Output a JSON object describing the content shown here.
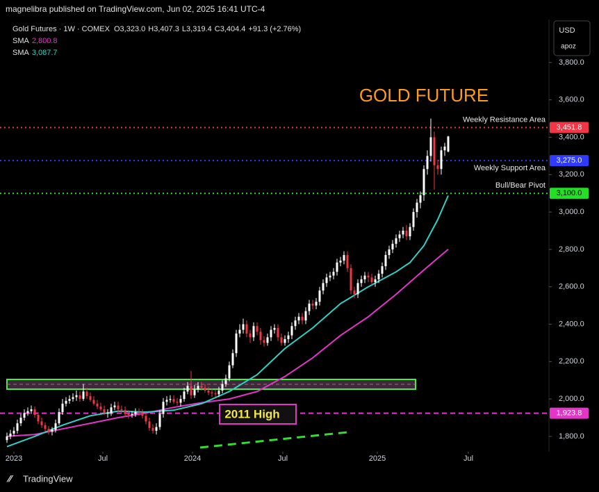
{
  "header": {
    "publisher": "magnelibra published on TradingView.com, Jun 02, 2025 16:41 UTC-4",
    "currency": "USD",
    "scale_mode": "apoz",
    "brand": "TradingView"
  },
  "chart_data": {
    "type": "candlestick",
    "symbol": "Gold Futures · 1W · COMEX",
    "ohlc": [
      {
        "key": "O",
        "value": "3,323.0"
      },
      {
        "key": "H",
        "value": "3,407.3"
      },
      {
        "key": "L",
        "value": "3,319.4"
      },
      {
        "key": "C",
        "value": "3,404.4"
      }
    ],
    "change": "+91.3 (+2.76%)",
    "up_color": "#ffffff",
    "down_color": "#f23645",
    "open": [
      1780,
      1800,
      1815,
      1830,
      1870,
      1900,
      1925,
      1935,
      1945,
      1915,
      1880,
      1860,
      1840,
      1825,
      1835,
      1870,
      1930,
      1975,
      1990,
      2000,
      2010,
      2020,
      2000,
      2040,
      2015,
      1995,
      1975,
      1960,
      1945,
      1925,
      1925,
      1955,
      1965,
      1945,
      1940,
      1920,
      1915,
      1920,
      1930,
      1925,
      1910,
      1880,
      1845,
      1830,
      1850,
      1920,
      1985,
      1995,
      2000,
      1985,
      1980,
      2000,
      2040,
      2070,
      2020,
      2050,
      2070,
      2060,
      2045,
      2035,
      2030,
      2025,
      2045,
      2080,
      2110,
      2180,
      2245,
      2350,
      2370,
      2400,
      2350,
      2330,
      2390,
      2360,
      2315,
      2300,
      2330,
      2370,
      2380,
      2330,
      2300,
      2320,
      2340,
      2390,
      2420,
      2440,
      2420,
      2470,
      2510,
      2500,
      2520,
      2580,
      2620,
      2650,
      2660,
      2680,
      2730,
      2740,
      2770,
      2700,
      2580,
      2560,
      2620,
      2640,
      2660,
      2650,
      2625,
      2640,
      2670,
      2710,
      2770,
      2800,
      2830,
      2860,
      2880,
      2900,
      2870,
      2920,
      3000,
      3050,
      3090,
      3230,
      3300,
      3400,
      3250,
      3230,
      3330,
      3323.0
    ],
    "high": [
      1820,
      1835,
      1850,
      1890,
      1920,
      1945,
      1955,
      1965,
      1960,
      1930,
      1900,
      1875,
      1855,
      1850,
      1890,
      1950,
      2000,
      2010,
      2020,
      2030,
      2045,
      2040,
      2080,
      2060,
      2035,
      2015,
      1995,
      1980,
      1965,
      1945,
      1975,
      1985,
      1985,
      1965,
      1960,
      1940,
      1935,
      1950,
      1950,
      1945,
      1930,
      1900,
      1865,
      1870,
      1940,
      2005,
      2015,
      2020,
      2020,
      2005,
      2020,
      2060,
      2090,
      2150,
      2075,
      2090,
      2090,
      2080,
      2065,
      2055,
      2050,
      2065,
      2100,
      2130,
      2200,
      2265,
      2370,
      2400,
      2430,
      2420,
      2370,
      2410,
      2410,
      2380,
      2335,
      2350,
      2390,
      2400,
      2400,
      2350,
      2340,
      2360,
      2410,
      2440,
      2460,
      2460,
      2490,
      2530,
      2530,
      2540,
      2600,
      2640,
      2670,
      2680,
      2700,
      2750,
      2760,
      2790,
      2790,
      2720,
      2600,
      2640,
      2660,
      2680,
      2680,
      2670,
      2660,
      2690,
      2730,
      2790,
      2820,
      2850,
      2880,
      2900,
      2920,
      2930,
      2940,
      3020,
      3070,
      3110,
      3250,
      3330,
      3500,
      3430,
      3280,
      3350,
      3370,
      3407.3
    ],
    "low": [
      1765,
      1785,
      1800,
      1815,
      1855,
      1885,
      1910,
      1920,
      1900,
      1865,
      1845,
      1825,
      1810,
      1805,
      1820,
      1860,
      1915,
      1960,
      1975,
      1985,
      1990,
      1985,
      1990,
      2000,
      1985,
      1965,
      1945,
      1935,
      1915,
      1900,
      1910,
      1940,
      1930,
      1925,
      1905,
      1895,
      1900,
      1905,
      1910,
      1895,
      1865,
      1830,
      1815,
      1810,
      1835,
      1900,
      1965,
      1980,
      1975,
      1965,
      1960,
      1985,
      2025,
      2000,
      2005,
      2035,
      2045,
      2035,
      2020,
      2010,
      2010,
      2010,
      2030,
      2065,
      2095,
      2165,
      2225,
      2330,
      2350,
      2330,
      2300,
      2310,
      2340,
      2290,
      2280,
      2285,
      2310,
      2350,
      2310,
      2285,
      2285,
      2300,
      2320,
      2370,
      2400,
      2400,
      2400,
      2450,
      2480,
      2480,
      2500,
      2560,
      2600,
      2630,
      2640,
      2660,
      2710,
      2720,
      2680,
      2560,
      2540,
      2540,
      2600,
      2620,
      2625,
      2610,
      2600,
      2620,
      2650,
      2690,
      2750,
      2780,
      2810,
      2840,
      2860,
      2850,
      2850,
      2900,
      2970,
      3020,
      3060,
      3200,
      3270,
      3120,
      3200,
      3200,
      3300,
      3319.4
    ],
    "close": [
      1800,
      1815,
      1830,
      1870,
      1900,
      1925,
      1935,
      1945,
      1915,
      1880,
      1860,
      1840,
      1825,
      1835,
      1870,
      1930,
      1975,
      1990,
      2000,
      2010,
      2020,
      2000,
      2040,
      2015,
      1995,
      1975,
      1960,
      1945,
      1925,
      1925,
      1955,
      1965,
      1945,
      1940,
      1920,
      1915,
      1920,
      1930,
      1925,
      1910,
      1880,
      1845,
      1830,
      1850,
      1920,
      1985,
      1995,
      2000,
      1985,
      1980,
      2000,
      2040,
      2070,
      2020,
      2050,
      2070,
      2060,
      2045,
      2035,
      2030,
      2025,
      2045,
      2080,
      2110,
      2180,
      2245,
      2350,
      2370,
      2400,
      2350,
      2330,
      2390,
      2360,
      2315,
      2300,
      2330,
      2370,
      2380,
      2330,
      2300,
      2320,
      2340,
      2390,
      2420,
      2440,
      2420,
      2470,
      2510,
      2500,
      2520,
      2580,
      2620,
      2650,
      2660,
      2680,
      2730,
      2740,
      2770,
      2700,
      2580,
      2560,
      2620,
      2640,
      2660,
      2650,
      2625,
      2640,
      2670,
      2710,
      2770,
      2800,
      2830,
      2860,
      2880,
      2900,
      2870,
      2920,
      3000,
      3050,
      3090,
      3230,
      3300,
      3400,
      3250,
      3230,
      3330,
      3350,
      3404.4
    ],
    "sma": [
      {
        "name": "SMA",
        "color": "#e535c8",
        "value_label": "2,800.8",
        "x": [
          0,
          8,
          16,
          24,
          32,
          40,
          48,
          56,
          64,
          72,
          80,
          88,
          96,
          104,
          112,
          120,
          127
        ],
        "values": [
          1800,
          1810,
          1840,
          1870,
          1900,
          1925,
          1955,
          1980,
          2000,
          2040,
          2120,
          2220,
          2340,
          2440,
          2560,
          2690,
          2800.8
        ]
      },
      {
        "name": "SMA",
        "color": "#2ed3c6",
        "value_label": "3,087.7",
        "x": [
          0,
          8,
          16,
          24,
          32,
          40,
          48,
          56,
          64,
          72,
          80,
          88,
          96,
          104,
          112,
          116,
          120,
          124,
          127
        ],
        "values": [
          1745,
          1800,
          1860,
          1910,
          1935,
          1930,
          1940,
          1975,
          2040,
          2130,
          2270,
          2380,
          2510,
          2600,
          2680,
          2730,
          2820,
          2960,
          3087.7
        ]
      }
    ],
    "levels": [
      {
        "label": "Weekly Resistance Area",
        "value": 3451.8,
        "value_label": "3,451.8",
        "color": "#f23645",
        "text_color": "#ffffff",
        "style": "dotted",
        "label_side": "above"
      },
      {
        "label": "Weekly Support Area",
        "value": 3275.0,
        "value_label": "3,275.0",
        "color": "#2f3cff",
        "text_color": "#ffffff",
        "style": "dotted",
        "label_side": "below"
      },
      {
        "label": "Bull/Bear Pivot",
        "value": 3100,
        "value_label": "3,100.0",
        "color": "#22e022",
        "text_color": "#000000",
        "style": "dotted",
        "label_side": "above"
      },
      {
        "label": "2011 High",
        "value": 1923.8,
        "value_label": "1,923.8",
        "color": "#e535c8",
        "text_color": "#ffffff",
        "style": "dashed",
        "label_side": "box"
      }
    ],
    "title": "GOLD FUTURE",
    "ylim": [
      1718,
      4030
    ],
    "yticks": [
      {
        "value": 1800,
        "label": "1,800.0"
      },
      {
        "value": 2000,
        "label": "2,000.0"
      },
      {
        "value": 2200,
        "label": "2,200.0"
      },
      {
        "value": 2400,
        "label": "2,400.0"
      },
      {
        "value": 2600,
        "label": "2,600.0"
      },
      {
        "value": 2800,
        "label": "2,800.0"
      },
      {
        "value": 3000,
        "label": "3,000.0"
      },
      {
        "value": 3200,
        "label": "3,200.0"
      },
      {
        "value": 3400,
        "label": "3,400.0"
      },
      {
        "value": 3600,
        "label": "3,600.0"
      },
      {
        "value": 3800,
        "label": "3,800.0"
      }
    ],
    "xlim": [
      -2,
      156
    ],
    "xticks": [
      {
        "value": 2,
        "label": "2023"
      },
      {
        "value": 27.6,
        "label": "Jul"
      },
      {
        "value": 53.4,
        "label": "2024"
      },
      {
        "value": 79.4,
        "label": "Jul"
      },
      {
        "value": 106.6,
        "label": "2025"
      },
      {
        "value": 132.8,
        "label": "Jul"
      }
    ]
  }
}
